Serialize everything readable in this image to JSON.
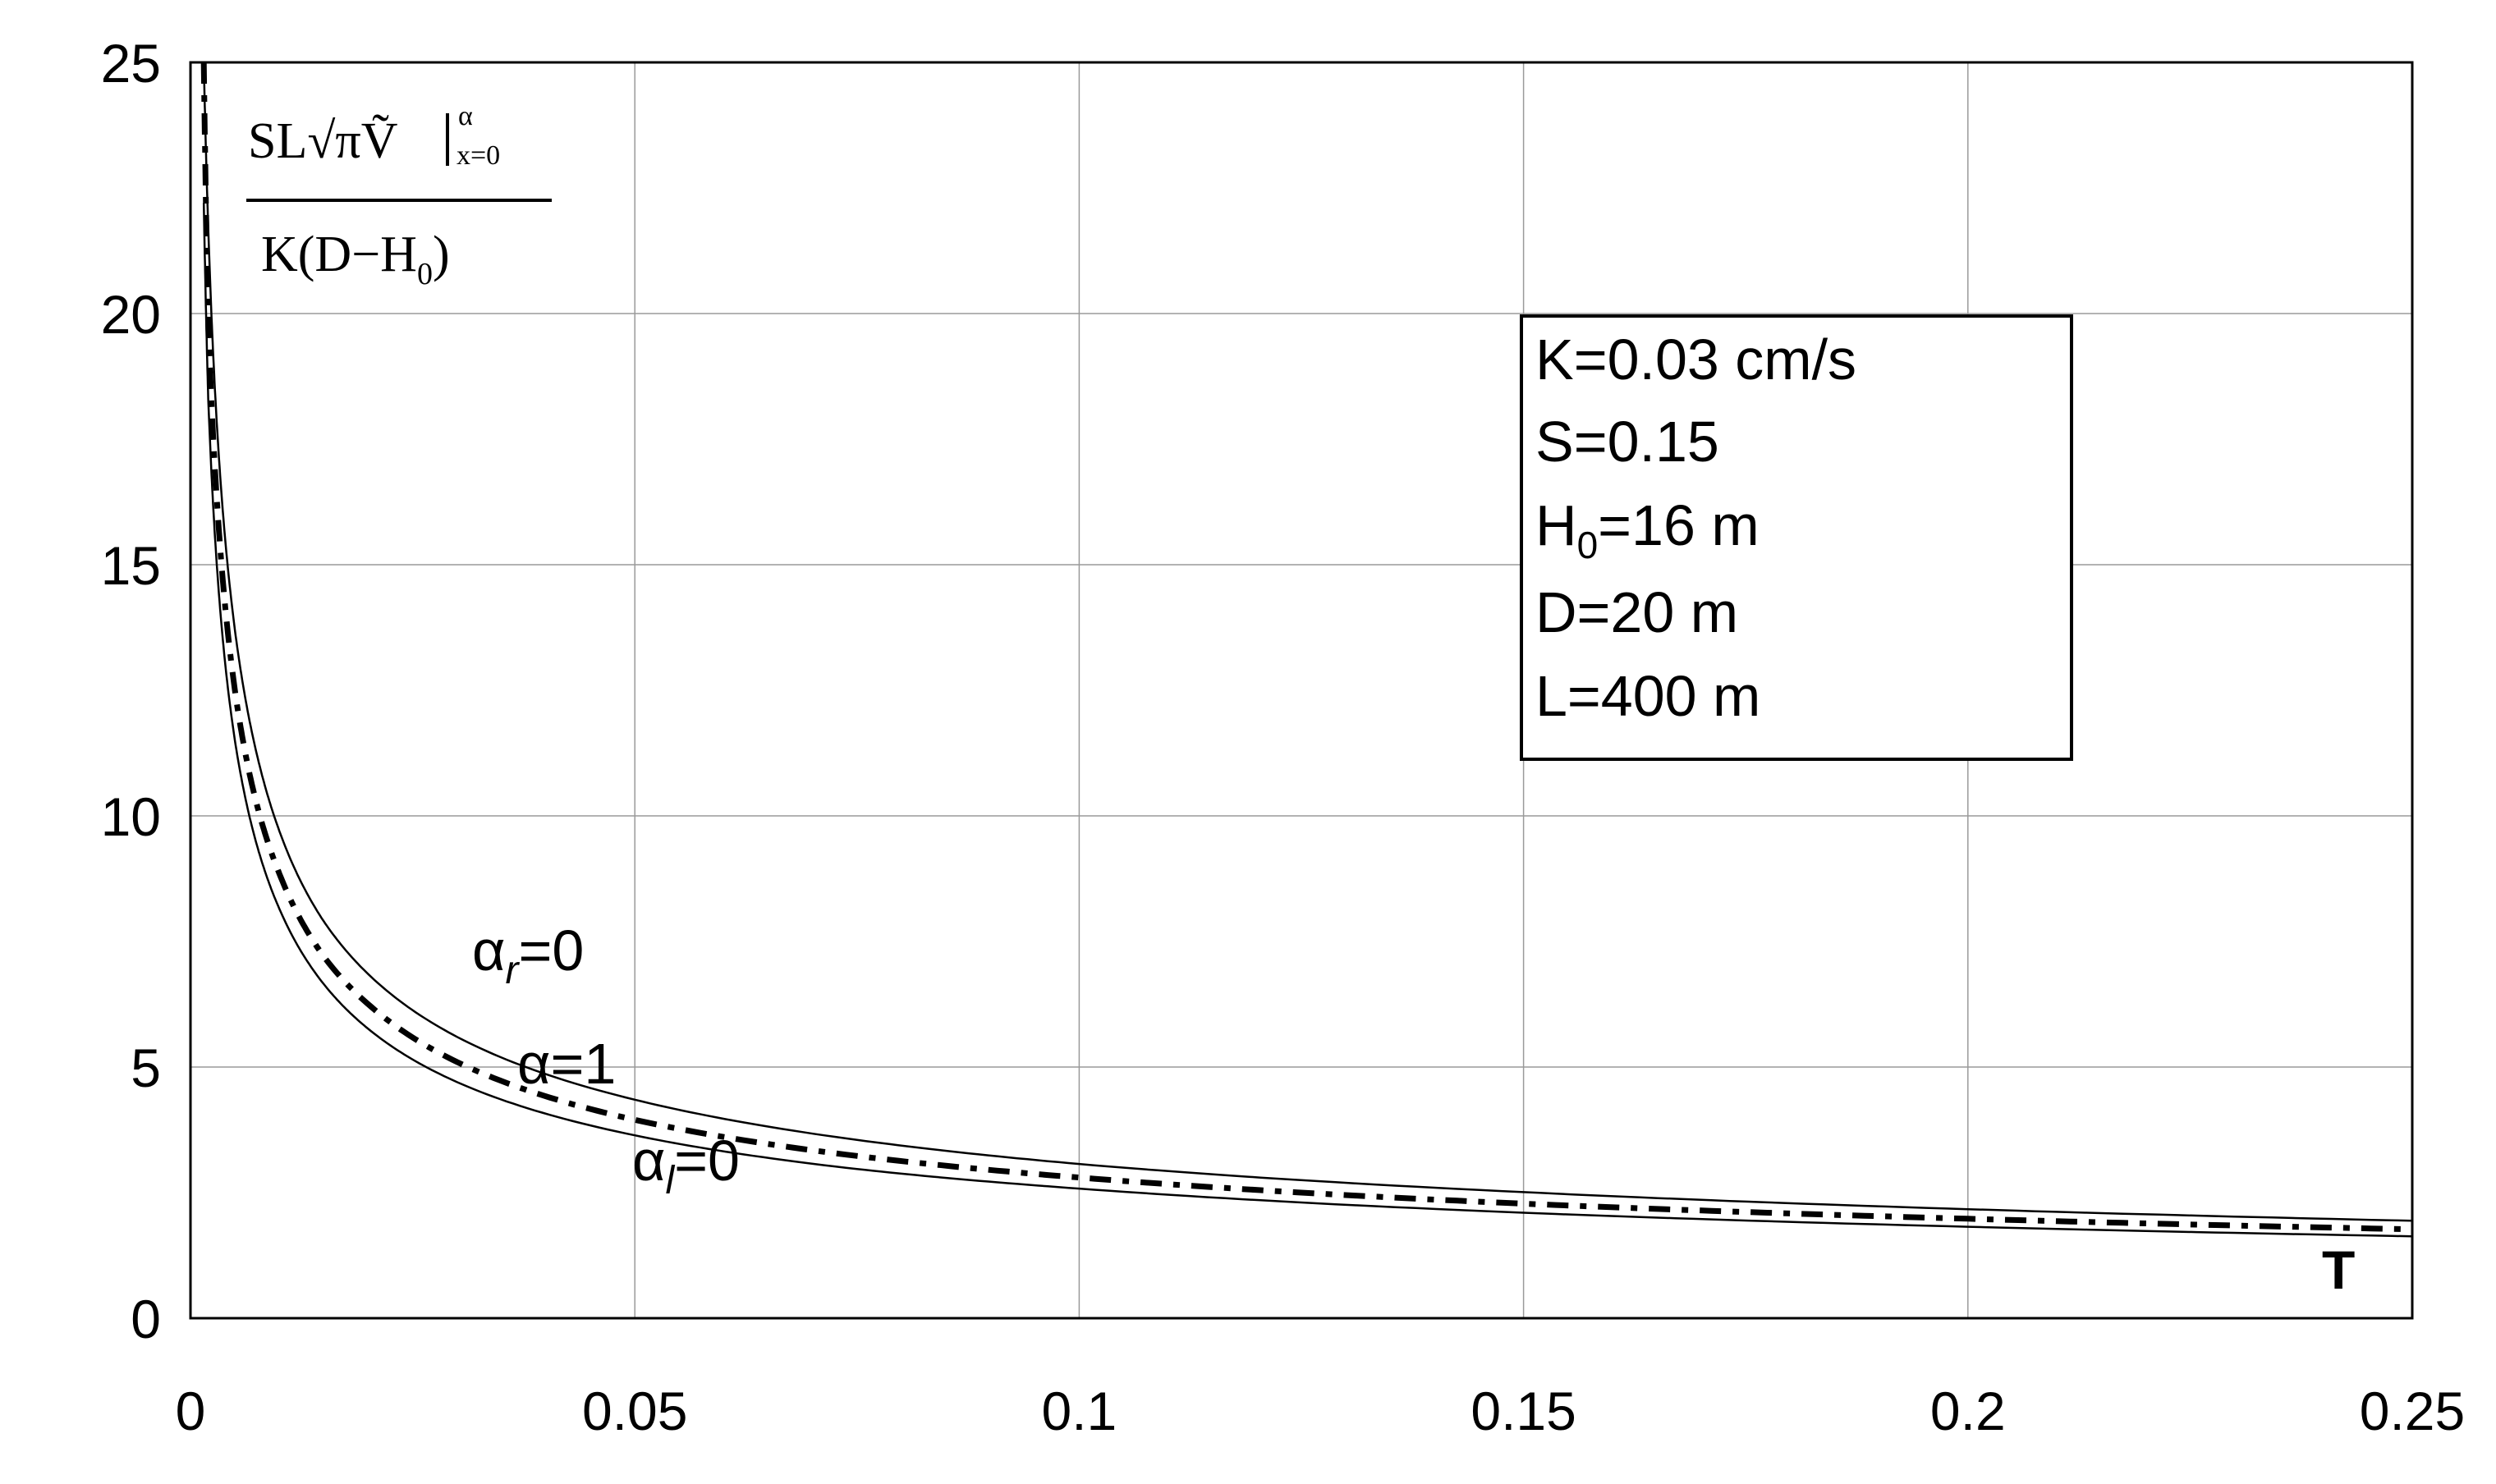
{
  "chart_data": {
    "type": "line",
    "title": "",
    "xlabel": "T",
    "ylabel": {
      "numerator": "SL√π",
      "numerator_var": "Ṽ",
      "superscript": "α",
      "subscript": "x=0",
      "denominator_main": "K(D−H",
      "denominator_sub": "0",
      "denominator_close": ")"
    },
    "xlim": [
      0,
      0.25
    ],
    "ylim": [
      0,
      25
    ],
    "x_ticks": [
      "0",
      "0.05",
      "0.1",
      "0.15",
      "0.2",
      "0.25"
    ],
    "y_ticks": [
      "0",
      "5",
      "10",
      "15",
      "20",
      "25"
    ],
    "grid": true,
    "series": [
      {
        "name": "αr=0",
        "label_main": "α",
        "label_sub": "r",
        "label_rest": "=0",
        "style": "solid",
        "x": [
          0.0015,
          0.002,
          0.003,
          0.005,
          0.0075,
          0.01,
          0.015,
          0.02,
          0.03,
          0.05,
          0.075,
          0.1,
          0.15,
          0.2,
          0.25
        ],
        "y": [
          25.0,
          21.7,
          17.7,
          13.7,
          11.2,
          9.7,
          7.9,
          6.85,
          5.6,
          4.35,
          3.55,
          3.07,
          2.51,
          2.17,
          1.94
        ]
      },
      {
        "name": "α=1",
        "label_main": "α",
        "label_sub": "",
        "label_rest": "=1",
        "style": "dashdot",
        "x": [
          0.0015,
          0.002,
          0.003,
          0.005,
          0.0075,
          0.01,
          0.015,
          0.02,
          0.03,
          0.05,
          0.075,
          0.1,
          0.15,
          0.2,
          0.25
        ],
        "y": [
          25.0,
          19.8,
          16.2,
          12.5,
          10.2,
          8.85,
          7.2,
          6.25,
          5.1,
          3.95,
          3.23,
          2.8,
          2.28,
          1.98,
          1.77
        ]
      },
      {
        "name": "αl=0",
        "label_main": "α",
        "label_sub": "l",
        "label_rest": "=0",
        "style": "solid",
        "x": [
          0.0015,
          0.002,
          0.003,
          0.005,
          0.0075,
          0.01,
          0.015,
          0.02,
          0.03,
          0.05,
          0.075,
          0.1,
          0.15,
          0.2,
          0.25
        ],
        "y": [
          22.2,
          18.3,
          14.9,
          11.5,
          9.4,
          8.15,
          6.65,
          5.76,
          4.7,
          3.64,
          2.97,
          2.58,
          2.1,
          1.82,
          1.63
        ]
      }
    ],
    "legend_box": {
      "placement": "top-right",
      "lines": [
        {
          "main": "K=0.03 cm/s",
          "sub": "",
          "rest": ""
        },
        {
          "main": "S=0.15",
          "sub": "",
          "rest": ""
        },
        {
          "main": "H",
          "sub": "0",
          "rest": "=16 m"
        },
        {
          "main": "D=20 m",
          "sub": "",
          "rest": ""
        },
        {
          "main": "L=400 m",
          "sub": "",
          "rest": ""
        }
      ]
    }
  }
}
